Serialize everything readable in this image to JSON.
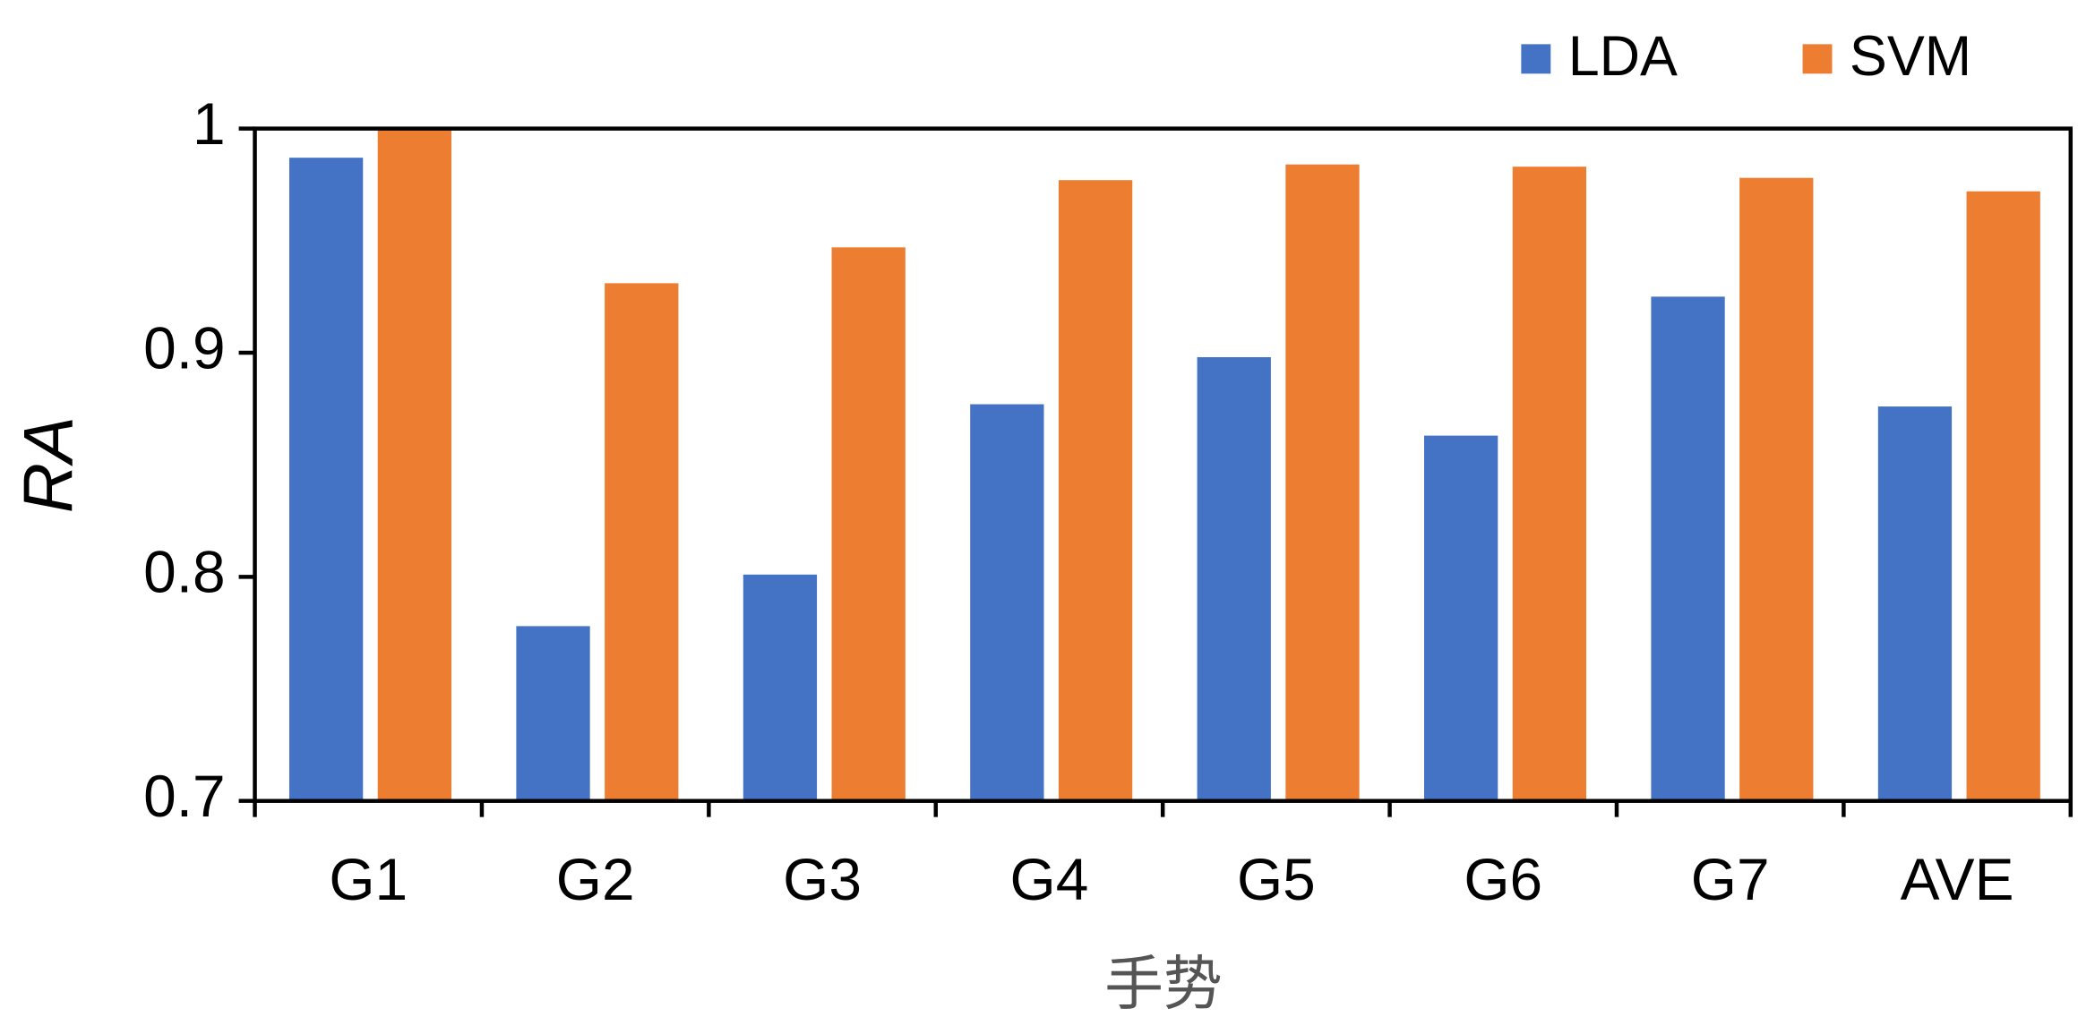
{
  "chart_data": {
    "type": "bar",
    "x_label": "手势",
    "y_label": "RA",
    "categories": [
      "G1",
      "G2",
      "G3",
      "G4",
      "G5",
      "G6",
      "G7",
      "AVE"
    ],
    "series": [
      {
        "name": "LDA",
        "color": "#4472c4",
        "values": [
          0.987,
          0.778,
          0.801,
          0.877,
          0.898,
          0.863,
          0.925,
          0.876
        ]
      },
      {
        "name": "SVM",
        "color": "#ed7d31",
        "values": [
          1.0,
          0.931,
          0.947,
          0.977,
          0.984,
          0.983,
          0.978,
          0.972
        ]
      }
    ],
    "ylim": [
      0.7,
      1
    ],
    "yticks": [
      0.7,
      0.8,
      0.9,
      1
    ],
    "grid": false,
    "legend": "top-right"
  }
}
